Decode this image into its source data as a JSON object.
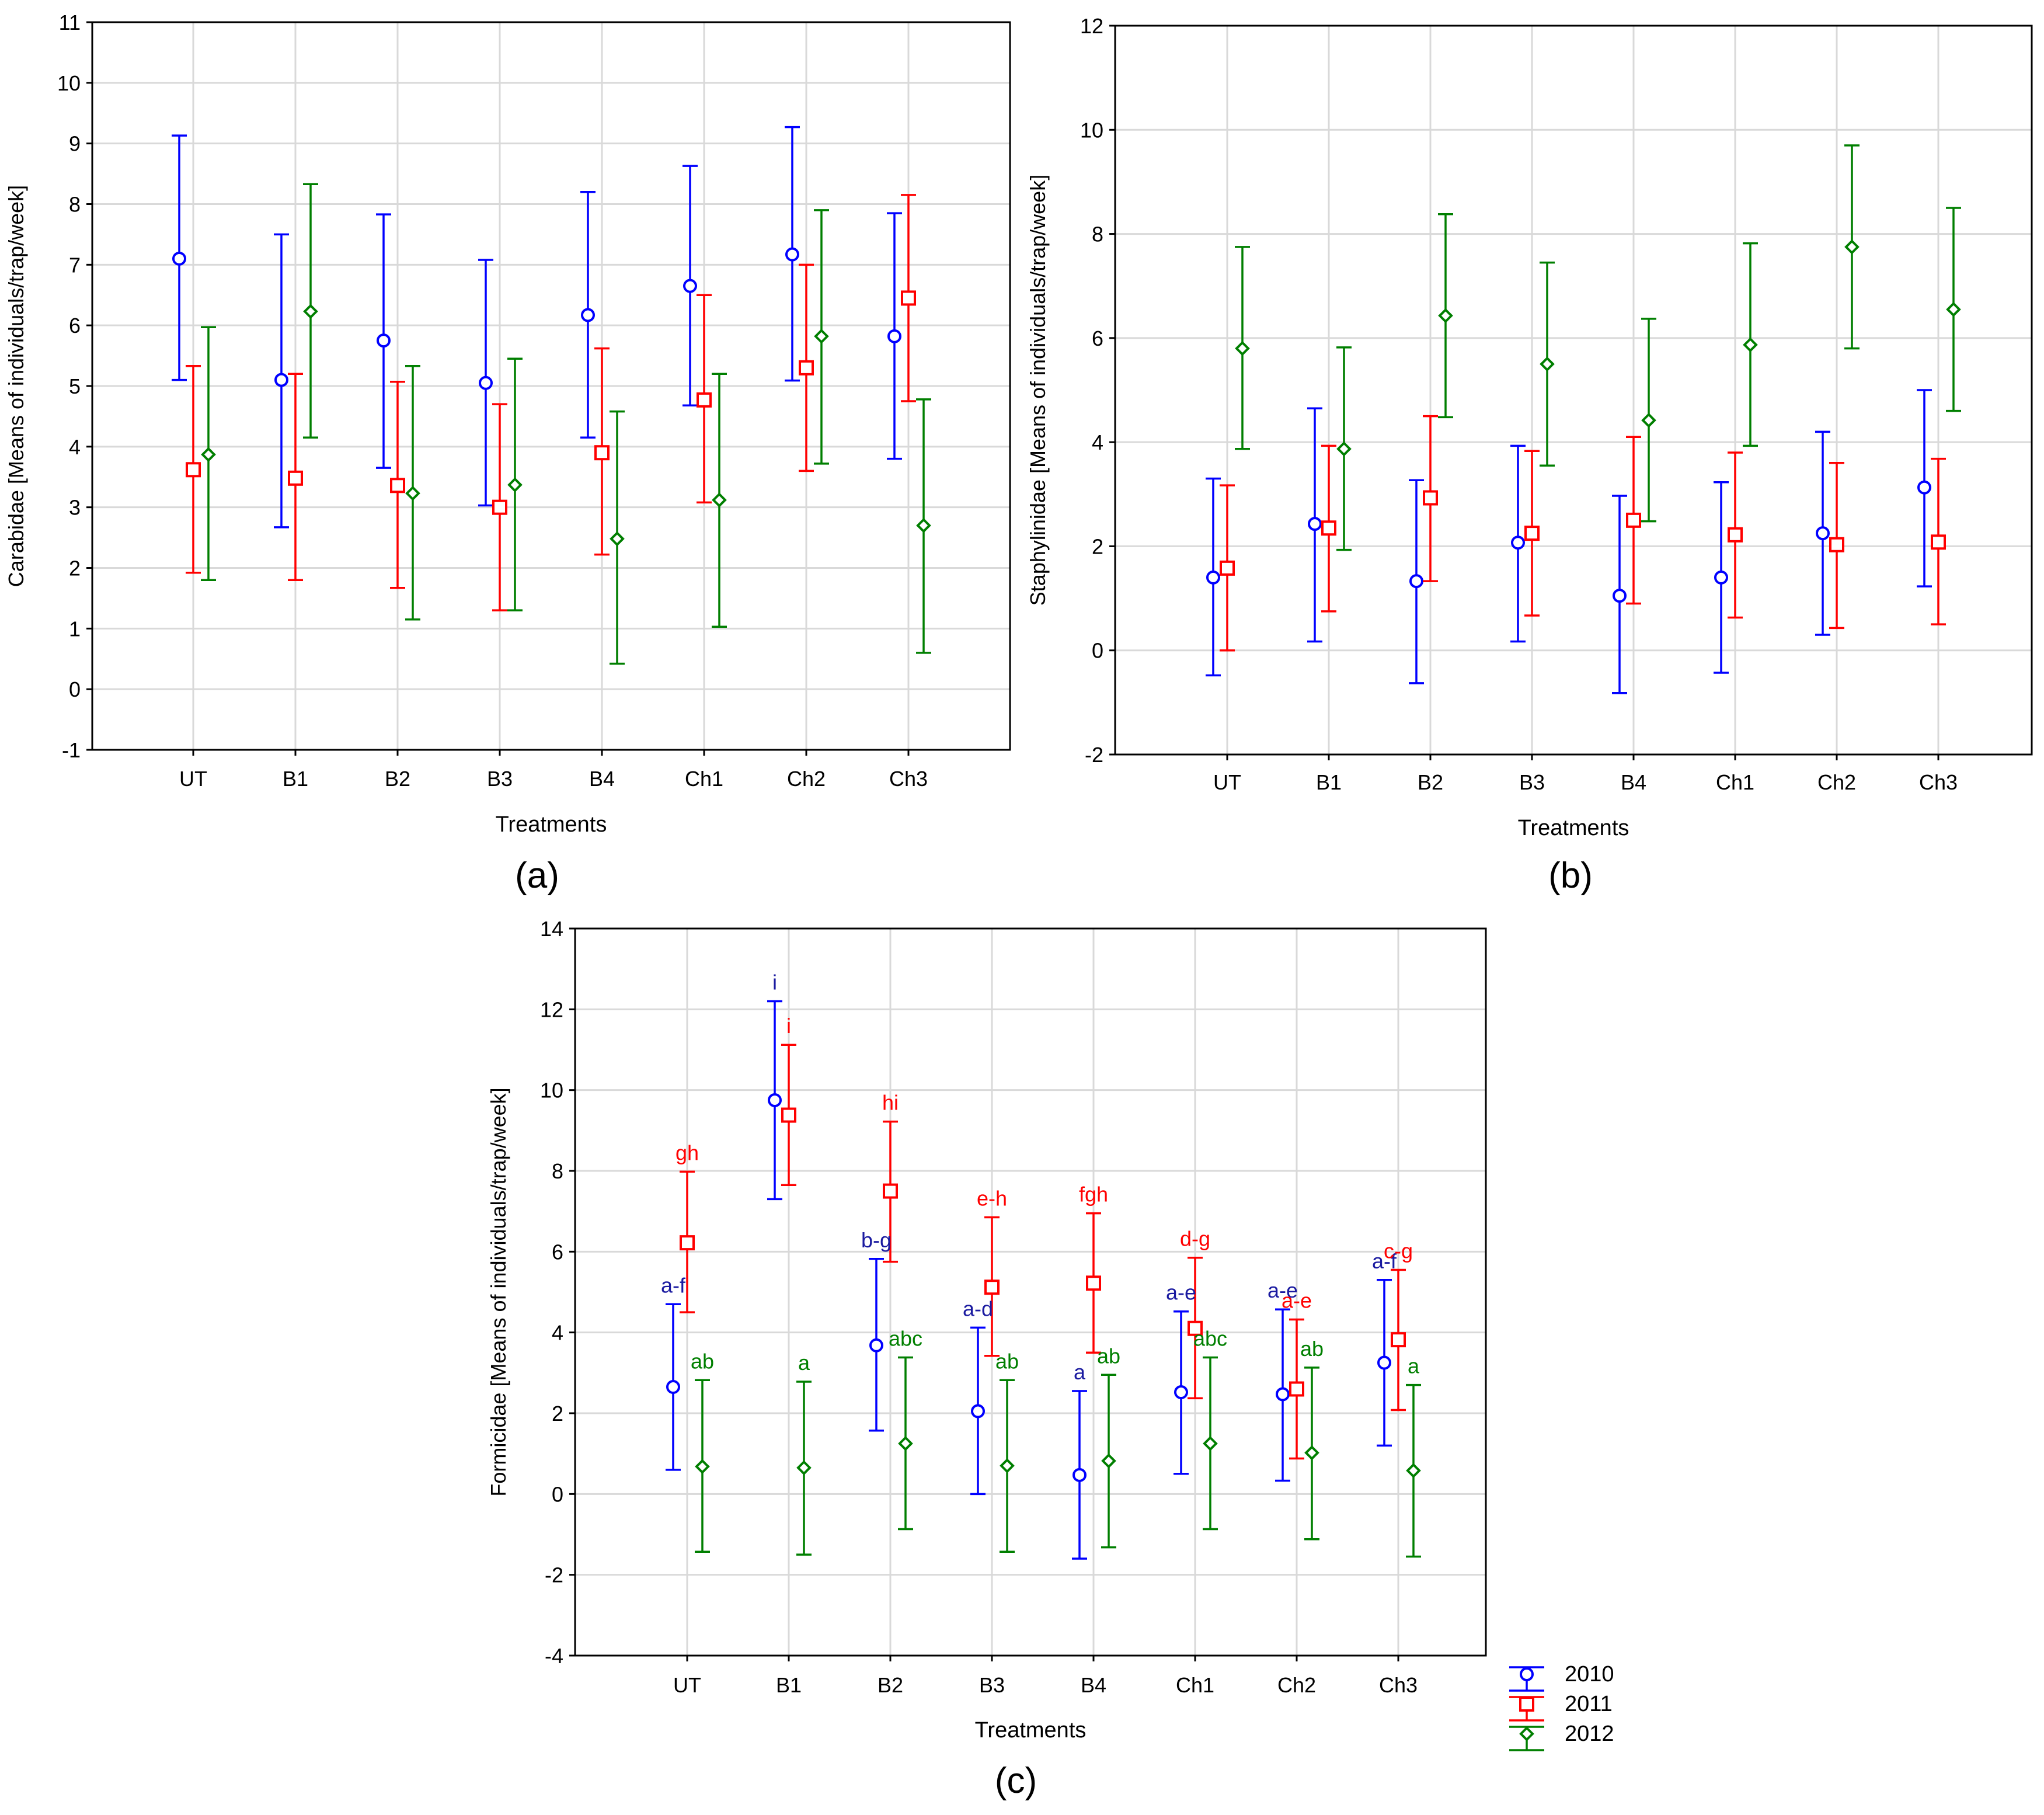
{
  "colors": {
    "y2010": "#0000ff",
    "y2011": "#ff0000",
    "y2012": "#007f00",
    "grid": "#d9d9d9",
    "axis": "#000000"
  },
  "legend": {
    "labels": [
      "2010",
      "2011",
      "2012"
    ]
  },
  "chart_data": [
    {
      "panel": "(a)",
      "type": "errorbar",
      "xlabel": "Treatments",
      "ylabel": "Carabidae [Means of individuals/trap/week]",
      "categories": [
        "UT",
        "B1",
        "B2",
        "B3",
        "B4",
        "Ch1",
        "Ch2",
        "Ch3"
      ],
      "ylim": [
        -1,
        11
      ],
      "yticks": [
        -1,
        0,
        1,
        2,
        3,
        4,
        5,
        6,
        7,
        8,
        9,
        10,
        11
      ],
      "grid": true,
      "series": [
        {
          "name": "2010",
          "marker": "circle",
          "values": [
            7.1,
            5.1,
            5.75,
            5.05,
            6.17,
            6.65,
            7.17,
            5.82
          ],
          "lower": [
            5.1,
            2.67,
            3.65,
            3.03,
            4.15,
            4.68,
            5.09,
            3.8
          ],
          "upper": [
            9.13,
            7.5,
            7.83,
            7.08,
            8.2,
            8.63,
            9.27,
            7.85
          ]
        },
        {
          "name": "2011",
          "marker": "square",
          "values": [
            3.62,
            3.48,
            3.36,
            3.0,
            3.9,
            4.77,
            5.3,
            6.45
          ],
          "lower": [
            1.92,
            1.8,
            1.67,
            1.3,
            2.22,
            3.08,
            3.6,
            4.75
          ],
          "upper": [
            5.33,
            5.2,
            5.07,
            4.7,
            5.62,
            6.5,
            7.0,
            8.15
          ]
        },
        {
          "name": "2012",
          "marker": "diamond",
          "values": [
            3.87,
            6.23,
            3.23,
            3.37,
            2.48,
            3.12,
            5.82,
            2.7
          ],
          "lower": [
            1.8,
            4.15,
            1.15,
            1.3,
            0.42,
            1.03,
            3.72,
            0.6
          ],
          "upper": [
            5.97,
            8.33,
            5.33,
            5.45,
            4.58,
            5.2,
            7.9,
            4.78
          ]
        }
      ]
    },
    {
      "panel": "(b)",
      "type": "errorbar",
      "xlabel": "Treatments",
      "ylabel": "Staphylinidae [Means of individuals/trap/week]",
      "categories": [
        "UT",
        "B1",
        "B2",
        "B3",
        "B4",
        "Ch1",
        "Ch2",
        "Ch3"
      ],
      "ylim": [
        -2,
        12
      ],
      "yticks": [
        -2,
        0,
        2,
        4,
        6,
        8,
        10,
        12
      ],
      "grid": true,
      "series": [
        {
          "name": "2010",
          "marker": "circle",
          "values": [
            1.4,
            2.43,
            1.33,
            2.07,
            1.05,
            1.4,
            2.25,
            3.13
          ],
          "lower": [
            -0.48,
            0.17,
            -0.63,
            0.17,
            -0.82,
            -0.43,
            0.3,
            1.23
          ],
          "upper": [
            3.3,
            4.65,
            3.27,
            3.93,
            2.97,
            3.23,
            4.2,
            5.0
          ]
        },
        {
          "name": "2011",
          "marker": "square",
          "values": [
            1.58,
            2.35,
            2.93,
            2.25,
            2.5,
            2.22,
            2.03,
            2.08
          ],
          "lower": [
            0.0,
            0.75,
            1.33,
            0.67,
            0.9,
            0.63,
            0.43,
            0.5
          ],
          "upper": [
            3.17,
            3.93,
            4.5,
            3.83,
            4.1,
            3.8,
            3.6,
            3.68
          ]
        },
        {
          "name": "2012",
          "marker": "diamond",
          "values": [
            5.8,
            3.87,
            6.43,
            5.5,
            4.42,
            5.87,
            7.75,
            6.55
          ],
          "lower": [
            3.87,
            1.93,
            4.48,
            3.55,
            2.48,
            3.93,
            5.8,
            4.6
          ],
          "upper": [
            7.75,
            5.82,
            8.38,
            7.45,
            6.37,
            7.82,
            9.7,
            8.5
          ]
        }
      ]
    },
    {
      "panel": "(c)",
      "type": "errorbar",
      "xlabel": "Treatments",
      "ylabel": "Formicidae [Means of individuals/trap/week]",
      "categories": [
        "UT",
        "B1",
        "B2",
        "B3",
        "B4",
        "Ch1",
        "Ch2",
        "Ch3"
      ],
      "ylim": [
        -4,
        14
      ],
      "yticks": [
        -4,
        -2,
        0,
        2,
        4,
        6,
        8,
        10,
        12,
        14
      ],
      "grid": true,
      "legend_position": "bottom-right outside",
      "series": [
        {
          "name": "2010",
          "marker": "circle",
          "values": [
            2.65,
            9.75,
            3.68,
            2.05,
            0.47,
            2.52,
            2.47,
            3.25
          ],
          "lower": [
            0.6,
            7.3,
            1.57,
            0.0,
            -1.6,
            0.5,
            0.33,
            1.2
          ],
          "upper": [
            4.7,
            12.2,
            5.82,
            4.12,
            2.55,
            4.52,
            4.57,
            5.3
          ],
          "letters": [
            "a-f",
            "i",
            "b-g",
            "a-d",
            "a",
            "a-e",
            "a-e",
            "a-f"
          ]
        },
        {
          "name": "2011",
          "marker": "square",
          "values": [
            6.22,
            null,
            7.5,
            5.12,
            5.22,
            4.1,
            2.6,
            3.82
          ],
          "lower": [
            4.5,
            null,
            5.75,
            3.42,
            3.5,
            2.37,
            0.88,
            2.08
          ],
          "upper": [
            7.98,
            null,
            9.22,
            6.85,
            6.95,
            5.85,
            4.32,
            5.55
          ],
          "letters": [
            "gh",
            "i",
            "hi",
            "e-h",
            "fgh",
            "d-g",
            "a-e",
            "c-g"
          ]
        },
        {
          "name": "2012",
          "marker": "diamond",
          "values": [
            0.68,
            0.65,
            1.25,
            0.7,
            0.82,
            1.25,
            1.02,
            0.58
          ],
          "lower": [
            -1.43,
            -1.5,
            -0.87,
            -1.43,
            -1.32,
            -0.87,
            -1.12,
            -1.55
          ],
          "upper": [
            2.82,
            2.78,
            3.38,
            2.82,
            2.95,
            3.38,
            3.13,
            2.7
          ],
          "letters": [
            "ab",
            "a",
            "abc",
            "ab",
            "ab",
            "abc",
            "ab",
            "a"
          ]
        }
      ],
      "extra_points": [
        {
          "series": "2011",
          "category": "B1",
          "value": 9.38,
          "lower": 7.65,
          "upper": 11.12
        }
      ]
    }
  ]
}
